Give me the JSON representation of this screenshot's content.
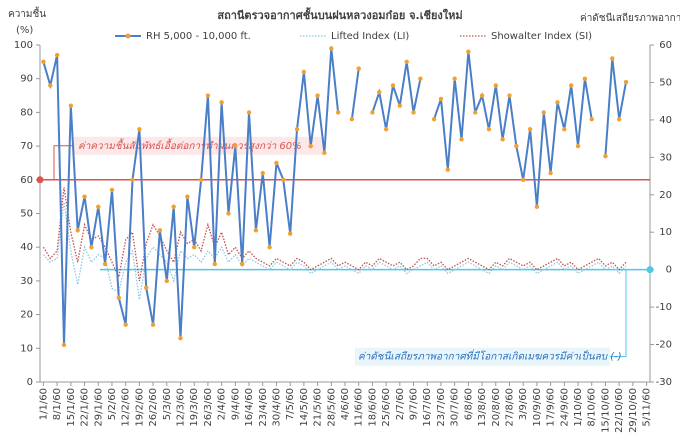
{
  "chart_data": {
    "type": "line",
    "title": "สถานีตรวจอากาศชั้นบนฝนหลวงอมก๋อย  จ.เชียงใหม่",
    "ylabel": [
      "ความชื้น",
      "(%)"
    ],
    "y2label": "ค่าดัชนีเสถียรภาพอากาศ",
    "categories": [
      "1/1/60",
      null,
      "8/1/60",
      null,
      "15/1/60",
      null,
      "22/1/60",
      null,
      "29/1/60",
      null,
      "5/2/60",
      null,
      "12/2/60",
      null,
      "19/2/60",
      null,
      "26/2/60",
      null,
      "5/3/60",
      null,
      "12/3/60",
      null,
      "19/3/60",
      null,
      "26/3/60",
      null,
      "2/4/60",
      null,
      "9/4/60",
      null,
      "16/4/60",
      null,
      "23/4/60",
      null,
      "30/4/60",
      null,
      "7/5/60",
      null,
      "14/5/60",
      null,
      "21/5/60",
      null,
      "28/5/60",
      null,
      "4/6/60",
      null,
      "11/6/60",
      null,
      "18/6/60",
      null,
      "25/6/60",
      null,
      "2/7/60",
      null,
      "9/7/60",
      null,
      "16/7/60",
      null,
      "23/7/60",
      null,
      "30/7/60",
      null,
      "6/8/60",
      null,
      "13/8/60",
      null,
      "20/8/60",
      null,
      "27/8/60",
      null,
      "3/9/60",
      null,
      "10/9/60",
      null,
      "17/9/60",
      null,
      "24/9/60",
      null,
      "1/10/60",
      null,
      "8/10/60",
      null,
      "15/10/60",
      null,
      "22/10/60",
      null,
      "29/10/60",
      null,
      "5/11/60"
    ],
    "series": [
      {
        "name": "RH 5,000 - 10,000 ft.",
        "color": "#4a7fc8",
        "marker_color": "#f0a030",
        "values": [
          95,
          88,
          97,
          11,
          82,
          45,
          55,
          40,
          52,
          35,
          57,
          25,
          17,
          60,
          75,
          28,
          17,
          45,
          30,
          52,
          13,
          55,
          40,
          60,
          85,
          35,
          83,
          50,
          70,
          35,
          80,
          45,
          62,
          40,
          65,
          60,
          44,
          75,
          92,
          70,
          85,
          68,
          99,
          80,
          null,
          78,
          93,
          null,
          80,
          86,
          75,
          88,
          82,
          95,
          80,
          90,
          null,
          78,
          84,
          63,
          90,
          72,
          98,
          80,
          85,
          75,
          88,
          72,
          85,
          70,
          60,
          75,
          52,
          80,
          62,
          83,
          75,
          88,
          70,
          90,
          78,
          null,
          67,
          96,
          78,
          89,
          null,
          null,
          null
        ]
      },
      {
        "name": "Lifted Index (LI)",
        "color": "#8fc8e0",
        "axis": "y2",
        "values": [
          4,
          2,
          3,
          18,
          5,
          -4,
          6,
          2,
          4,
          3,
          -5,
          -6,
          2,
          5,
          -8,
          3,
          6,
          4,
          2,
          -3,
          5,
          3,
          4,
          2,
          5,
          3,
          6,
          2,
          4,
          1,
          3,
          2,
          1,
          0,
          2,
          1,
          0,
          2,
          1,
          -1,
          0,
          1,
          2,
          0,
          1,
          0,
          -1,
          1,
          0,
          2,
          1,
          0,
          1,
          -1,
          0,
          1,
          2,
          0,
          1,
          -1,
          0,
          1,
          2,
          1,
          0,
          -1,
          1,
          0,
          2,
          1,
          0,
          1,
          -1,
          0,
          1,
          2,
          0,
          1,
          -1,
          0,
          1,
          2,
          0,
          1,
          -1,
          1,
          null,
          null,
          null
        ]
      },
      {
        "name": "Showalter Index (SI)",
        "color": "#c0504d",
        "axis": "y2",
        "values": [
          6,
          3,
          5,
          22,
          10,
          2,
          12,
          8,
          9,
          6,
          2,
          -2,
          8,
          10,
          -3,
          7,
          12,
          9,
          5,
          2,
          10,
          7,
          8,
          5,
          12,
          6,
          10,
          4,
          6,
          3,
          5,
          3,
          2,
          1,
          3,
          2,
          1,
          3,
          2,
          0,
          1,
          2,
          3,
          1,
          2,
          1,
          0,
          2,
          1,
          3,
          2,
          1,
          2,
          0,
          1,
          3,
          3,
          1,
          2,
          0,
          1,
          2,
          3,
          2,
          1,
          0,
          2,
          1,
          3,
          2,
          1,
          2,
          0,
          1,
          2,
          3,
          1,
          2,
          0,
          1,
          2,
          3,
          1,
          2,
          0,
          2,
          null,
          null,
          null
        ]
      }
    ],
    "ylim": [
      0,
      100
    ],
    "yticks": [
      0,
      10,
      20,
      30,
      40,
      50,
      60,
      70,
      80,
      90,
      100
    ],
    "y2lim": [
      -30,
      60
    ],
    "y2ticks": [
      -30,
      -20,
      -10,
      0,
      10,
      20,
      30,
      40,
      50,
      60
    ],
    "rh_threshold": 60,
    "rh_threshold_color": "#d9534f",
    "rh_annotation": "ค่าความชื้นสัมพัทธ์เอื้อต่อการทำฝนควรสูงกว่า 60%",
    "index_threshold": 0,
    "index_threshold_color": "#4dc8e8",
    "index_annotation": "ค่าดัชนีเสถียรภาพอากาศที่มีโอกาสเกิดเมฆควรมีค่าเป็นลบ (-)"
  }
}
